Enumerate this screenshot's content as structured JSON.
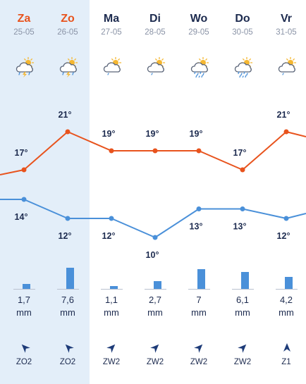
{
  "colors": {
    "max_line": "#e8531d",
    "min_line": "#4a90d9",
    "weekend_text": "#e8531d",
    "weekend_bg": "#e3eef9"
  },
  "days": [
    {
      "name": "Za",
      "date": "25-05",
      "weekend": true,
      "icon": "thunderstorm-icon",
      "max": "17°",
      "min": "14°",
      "precip": "1,7",
      "precip_mm": 1.7,
      "unit": "mm",
      "wind_dir": "ZO2",
      "wind_rot": -45
    },
    {
      "name": "Zo",
      "date": "26-05",
      "weekend": true,
      "icon": "thunderstorm-icon",
      "max": "21°",
      "min": "12°",
      "precip": "7,6",
      "precip_mm": 7.6,
      "unit": "mm",
      "wind_dir": "ZO2",
      "wind_rot": -45
    },
    {
      "name": "Ma",
      "date": "27-05",
      "weekend": false,
      "icon": "partly-cloudy-icon",
      "max": "19°",
      "min": "12°",
      "precip": "1,1",
      "precip_mm": 1.1,
      "unit": "mm",
      "wind_dir": "ZW2",
      "wind_rot": 45
    },
    {
      "name": "Di",
      "date": "28-05",
      "weekend": false,
      "icon": "partly-cloudy-icon",
      "max": "19°",
      "min": "10°",
      "precip": "2,7",
      "precip_mm": 2.7,
      "unit": "mm",
      "wind_dir": "ZW2",
      "wind_rot": 45
    },
    {
      "name": "Wo",
      "date": "29-05",
      "weekend": false,
      "icon": "rain-icon",
      "max": "19°",
      "min": "13°",
      "precip": "7",
      "precip_mm": 7,
      "unit": "mm",
      "wind_dir": "ZW2",
      "wind_rot": 45
    },
    {
      "name": "Do",
      "date": "30-05",
      "weekend": false,
      "icon": "rain-icon",
      "max": "17°",
      "min": "13°",
      "precip": "6,1",
      "precip_mm": 6.1,
      "unit": "mm",
      "wind_dir": "ZW2",
      "wind_rot": 45
    },
    {
      "name": "Vr",
      "date": "31-05",
      "weekend": false,
      "icon": "partly-cloudy-icon",
      "max": "21°",
      "min": "12°",
      "precip": "4,2",
      "precip_mm": 4.2,
      "unit": "mm",
      "wind_dir": "Z1",
      "wind_rot": 0
    }
  ],
  "chart_data": {
    "type": "line",
    "categories": [
      "25-05",
      "26-05",
      "27-05",
      "28-05",
      "29-05",
      "30-05",
      "31-05"
    ],
    "series": [
      {
        "values": [
          17,
          21,
          19,
          19,
          19,
          17,
          21
        ]
      },
      {
        "values": [
          14,
          12,
          12,
          10,
          13,
          13,
          12
        ]
      }
    ]
  }
}
